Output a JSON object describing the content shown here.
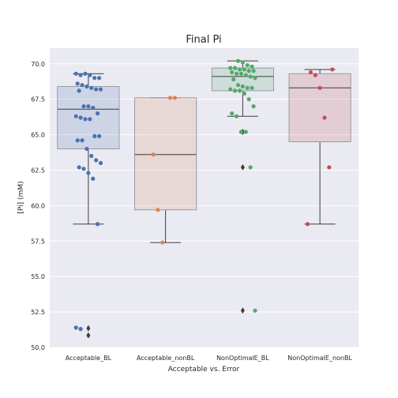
{
  "chart_data": {
    "type": "box",
    "title": "Final Pi",
    "xlabel": "Acceptable vs. Error",
    "ylabel": "[Pi] (mM)",
    "ylim": [
      50.0,
      71.1
    ],
    "yticks": [
      "50.0",
      "52.5",
      "55.0",
      "57.5",
      "60.0",
      "62.5",
      "65.0",
      "67.5",
      "70.0"
    ],
    "grid": true,
    "categories": [
      "Acceptable_BL",
      "Acceptable_nonBL",
      "NonOptimalE_BL",
      "NonOptimalE_nonBL"
    ],
    "colors": {
      "Acceptable_BL": "#4c72b0",
      "Acceptable_nonBL": "#dd8452",
      "NonOptimalE_BL": "#55a868",
      "NonOptimalE_nonBL": "#c44e52"
    },
    "boxes": [
      {
        "name": "Acceptable_BL",
        "whisker_low": 58.7,
        "q1": 64.0,
        "median": 66.8,
        "q3": 68.4,
        "whisker_high": 69.3,
        "outliers": [
          51.35,
          50.85
        ]
      },
      {
        "name": "Acceptable_nonBL",
        "whisker_low": 57.4,
        "q1": 59.7,
        "median": 63.6,
        "q3": 67.6,
        "whisker_high": 67.6,
        "outliers": []
      },
      {
        "name": "NonOptimalE_BL",
        "whisker_low": 66.3,
        "q1": 68.1,
        "median": 69.1,
        "q3": 69.7,
        "whisker_high": 70.2,
        "outliers": [
          65.2,
          62.7,
          52.6
        ]
      },
      {
        "name": "NonOptimalE_nonBL",
        "whisker_low": 58.7,
        "q1": 64.5,
        "median": 68.3,
        "q3": 69.3,
        "whisker_high": 69.6,
        "outliers": []
      }
    ],
    "points": [
      [
        69.3,
        69.2,
        69.3,
        69.2,
        69.0,
        69.0,
        68.6,
        68.5,
        68.4,
        68.3,
        68.2,
        68.2,
        68.1,
        67.0,
        67.0,
        66.9,
        66.5,
        66.3,
        66.2,
        66.1,
        66.1,
        64.9,
        64.9,
        64.6,
        64.6,
        64.0,
        63.5,
        63.2,
        63.0,
        62.7,
        62.6,
        62.3,
        61.9,
        58.7,
        51.4,
        51.3
      ],
      [
        67.6,
        67.6,
        63.6,
        59.7,
        57.4
      ],
      [
        70.2,
        70.1,
        69.9,
        69.8,
        69.7,
        69.7,
        69.6,
        69.6,
        69.5,
        69.5,
        69.4,
        69.3,
        69.3,
        69.2,
        69.1,
        69.0,
        68.9,
        68.5,
        68.4,
        68.3,
        68.3,
        68.2,
        68.1,
        68.1,
        67.9,
        67.5,
        67.0,
        66.5,
        66.3,
        65.2,
        65.2,
        62.7,
        52.6
      ],
      [
        69.6,
        69.4,
        69.2,
        68.3,
        66.2,
        62.7,
        58.7
      ]
    ]
  }
}
